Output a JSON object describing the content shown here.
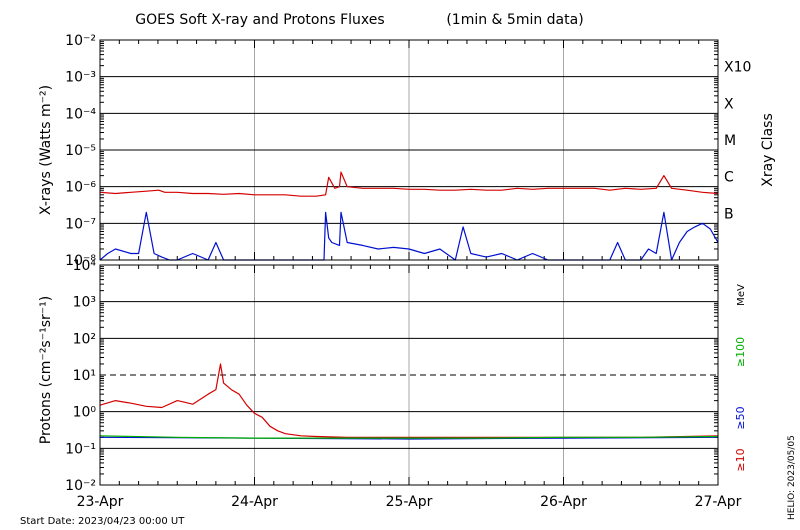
{
  "chart_data": {
    "title": "GOES Soft X-ray and Protons Fluxes",
    "subtitle": "(1min & 5min data)",
    "footer_start": "Start Date: 2023/04/23 00:00 UT",
    "helio_label": "HELIO: 2023/05/05",
    "x_ticks": [
      "23-Apr",
      "24-Apr",
      "25-Apr",
      "26-Apr",
      "27-Apr"
    ],
    "x_range_days": [
      0,
      4
    ],
    "panels": [
      {
        "id": "xray",
        "type": "line",
        "ylabel": "X-rays (Watts m⁻²)",
        "right_label": "Xray Class",
        "y_scale": "log",
        "ylim_exp": [
          -8,
          -2
        ],
        "y_ticks": [
          "10⁻⁸",
          "10⁻⁷",
          "10⁻⁶",
          "10⁻⁵",
          "10⁻⁴",
          "10⁻³",
          "10⁻²"
        ],
        "class_labels": [
          {
            "exp": -7,
            "label": "B"
          },
          {
            "exp": -6,
            "label": "C"
          },
          {
            "exp": -5,
            "label": "M"
          },
          {
            "exp": -4,
            "label": "X"
          },
          {
            "exp": -3,
            "label": "X10"
          }
        ],
        "series": [
          {
            "color": "#d40000",
            "x": [
              0.0,
              0.1,
              0.2,
              0.3,
              0.38,
              0.42,
              0.5,
              0.6,
              0.7,
              0.8,
              0.9,
              1.0,
              1.1,
              1.2,
              1.3,
              1.4,
              1.46,
              1.48,
              1.52,
              1.55,
              1.56,
              1.6,
              1.7,
              1.8,
              1.9,
              2.0,
              2.1,
              2.2,
              2.3,
              2.4,
              2.5,
              2.6,
              2.7,
              2.8,
              2.9,
              3.0,
              3.1,
              3.2,
              3.3,
              3.4,
              3.5,
              3.6,
              3.65,
              3.7,
              3.8,
              3.9,
              4.0
            ],
            "y": [
              7e-07,
              6.5e-07,
              7e-07,
              7.5e-07,
              8e-07,
              7e-07,
              7e-07,
              6.5e-07,
              6.5e-07,
              6.2e-07,
              6.5e-07,
              6e-07,
              6e-07,
              6e-07,
              5.5e-07,
              5.5e-07,
              6e-07,
              1.8e-06,
              9e-07,
              1e-06,
              2.5e-06,
              1e-06,
              9e-07,
              9e-07,
              9e-07,
              8.5e-07,
              8.5e-07,
              8e-07,
              8e-07,
              8.5e-07,
              8e-07,
              8e-07,
              9e-07,
              8.5e-07,
              9e-07,
              9e-07,
              9e-07,
              9e-07,
              8e-07,
              9e-07,
              8.5e-07,
              9e-07,
              2e-06,
              9e-07,
              8e-07,
              7e-07,
              6.5e-07
            ]
          },
          {
            "color": "#0010d0",
            "x": [
              0.0,
              0.05,
              0.1,
              0.2,
              0.25,
              0.3,
              0.35,
              0.4,
              0.45,
              0.5,
              0.6,
              0.7,
              0.75,
              0.8,
              0.9,
              1.0,
              1.1,
              1.2,
              1.3,
              1.4,
              1.45,
              1.46,
              1.48,
              1.5,
              1.55,
              1.56,
              1.6,
              1.7,
              1.8,
              1.9,
              2.0,
              2.1,
              2.2,
              2.3,
              2.35,
              2.4,
              2.5,
              2.6,
              2.7,
              2.8,
              2.9,
              3.0,
              3.1,
              3.2,
              3.3,
              3.35,
              3.4,
              3.5,
              3.55,
              3.6,
              3.65,
              3.7,
              3.75,
              3.8,
              3.85,
              3.9,
              3.95,
              4.0
            ],
            "y": [
              1e-08,
              1.5e-08,
              2e-08,
              1.5e-08,
              1.5e-08,
              2e-07,
              1.5e-08,
              1.2e-08,
              1e-08,
              1e-08,
              1.5e-08,
              1e-08,
              3e-08,
              1e-08,
              1e-08,
              1e-08,
              1e-08,
              1e-08,
              1e-08,
              1e-08,
              1e-08,
              2e-07,
              4e-08,
              3e-08,
              2.5e-08,
              2e-07,
              3e-08,
              2.5e-08,
              2e-08,
              2.2e-08,
              2e-08,
              1.5e-08,
              2e-08,
              1e-08,
              8e-08,
              1.5e-08,
              1.2e-08,
              1.5e-08,
              1e-08,
              1.5e-08,
              1e-08,
              1e-08,
              1e-08,
              1e-08,
              1e-08,
              3e-08,
              1e-08,
              1e-08,
              2e-08,
              1.5e-08,
              2e-07,
              1e-08,
              3e-08,
              6e-08,
              8e-08,
              1e-07,
              7e-08,
              3e-08
            ]
          }
        ]
      },
      {
        "id": "protons",
        "type": "line",
        "ylabel": "Protons (cm⁻²s⁻¹sr⁻¹)",
        "units": "MeV",
        "y_scale": "log",
        "ylim_exp": [
          -2,
          4
        ],
        "y_ticks": [
          "10⁻²",
          "10⁻¹",
          "10⁰",
          "10¹",
          "10²",
          "10³",
          "10⁴"
        ],
        "threshold_exp": 1,
        "series": [
          {
            "name": "≥10",
            "color": "#d40000",
            "x": [
              0.0,
              0.1,
              0.2,
              0.3,
              0.4,
              0.5,
              0.55,
              0.6,
              0.7,
              0.75,
              0.78,
              0.8,
              0.85,
              0.9,
              0.95,
              1.0,
              1.05,
              1.1,
              1.15,
              1.2,
              1.3,
              1.4,
              1.6,
              1.8,
              2.0,
              2.5,
              3.0,
              3.5,
              4.0
            ],
            "y": [
              1.5,
              2.0,
              1.7,
              1.4,
              1.3,
              2.0,
              1.8,
              1.6,
              3.0,
              4.0,
              20,
              6.0,
              4.0,
              3.0,
              1.5,
              0.9,
              0.7,
              0.4,
              0.3,
              0.25,
              0.22,
              0.21,
              0.2,
              0.2,
              0.2,
              0.2,
              0.2,
              0.2,
              0.22
            ]
          },
          {
            "name": "≥50",
            "color": "#0010d0",
            "x": [
              0.0,
              1.0,
              2.0,
              3.0,
              4.0
            ],
            "y": [
              0.2,
              0.19,
              0.18,
              0.19,
              0.2
            ]
          },
          {
            "name": "≥100",
            "color": "#00b000",
            "x": [
              0.0,
              0.5,
              1.0,
              1.5,
              2.0,
              2.5,
              3.0,
              3.5,
              4.0
            ],
            "y": [
              0.22,
              0.2,
              0.19,
              0.19,
              0.19,
              0.19,
              0.2,
              0.2,
              0.21
            ]
          }
        ]
      }
    ]
  }
}
